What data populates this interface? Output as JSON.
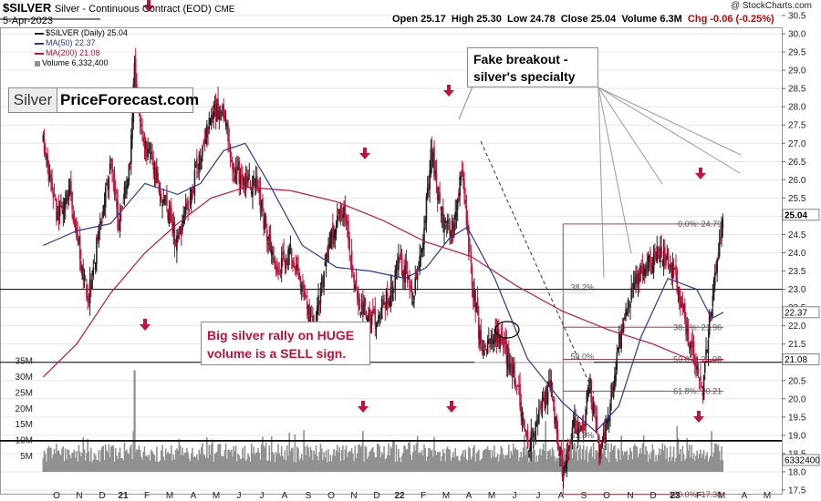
{
  "header": {
    "symbol": "$SILVER",
    "name": "Silver - Continuous Contract (EOD)",
    "exchange": "CME",
    "date": "5-Apr-2023",
    "open": "Open 25.17",
    "high": "High 25.30",
    "low": "Low 24.78",
    "close": "Close 25.04",
    "volume": "Volume 6.3M",
    "chg": "Chg -0.06 (-0.25%)",
    "credit": "@ StockCharts.com"
  },
  "legend": {
    "price": "$SILVER (Daily) 25.04",
    "ma50": "MA(50) 22.37",
    "ma200": "MA(200) 21.08",
    "volume": "Volume 6,332,400"
  },
  "brand": {
    "part1": "Silver",
    "part2": "PriceForecast.com"
  },
  "annotations": {
    "fake_breakout": [
      "Fake breakout -",
      "silver's specialty"
    ],
    "volume_note": [
      "Big silver rally on HUGE",
      "volume is a SELL sign."
    ]
  },
  "colors": {
    "candle_up": "#202020",
    "candle_down": "#c0143c",
    "ma50": "#2b3a8f",
    "ma200": "#c0143c",
    "fib": "#b04050",
    "volume": "#909090",
    "arrow": "#c0143c",
    "support": "#000000"
  },
  "chart_data": {
    "type": "candlestick",
    "title": "$SILVER Silver - Continuous Contract (EOD)",
    "y_price": {
      "min": 17.25,
      "max": 30.75,
      "ticks": [
        "30.5",
        "30.0",
        "29.5",
        "29.0",
        "28.5",
        "28.0",
        "27.5",
        "27.0",
        "26.5",
        "26.0",
        "25.5",
        "25.0",
        "24.5",
        "24.0",
        "23.5",
        "23.0",
        "22.5",
        "22.0",
        "21.5",
        "21.0",
        "20.5",
        "20.0",
        "19.5",
        "19.0",
        "18.5",
        "18.0",
        "17.5"
      ]
    },
    "y_volume": {
      "ticks": [
        "35M",
        "30M",
        "25M",
        "20M",
        "15M",
        "10M",
        "5M"
      ]
    },
    "x_labels": [
      "O",
      "N",
      "D",
      "21",
      "F",
      "M",
      "A",
      "M",
      "J",
      "J",
      "A",
      "S",
      "O",
      "N",
      "D",
      "22",
      "F",
      "M",
      "A",
      "M",
      "J",
      "J",
      "A",
      "S",
      "O",
      "N",
      "D",
      "23",
      "F",
      "M",
      "A",
      "M"
    ],
    "last_price": "25.04",
    "right_tags": [
      "25.04",
      "22.37",
      "21.08",
      "6332400"
    ],
    "price_path": [
      [
        "2020-10-01",
        27.0
      ],
      [
        "2020-10-20",
        25.0
      ],
      [
        "2020-11-05",
        25.8
      ],
      [
        "2020-11-30",
        22.6
      ],
      [
        "2020-12-15",
        24.6
      ],
      [
        "2020-12-31",
        26.4
      ],
      [
        "2021-01-10",
        24.8
      ],
      [
        "2021-01-25",
        26.2
      ],
      [
        "2021-02-01",
        29.0
      ],
      [
        "2021-02-10",
        27.3
      ],
      [
        "2021-03-01",
        26.2
      ],
      [
        "2021-03-31",
        24.2
      ],
      [
        "2021-04-20",
        25.8
      ],
      [
        "2021-05-15",
        27.8
      ],
      [
        "2021-05-31",
        28.0
      ],
      [
        "2021-06-15",
        26.2
      ],
      [
        "2021-06-30",
        26.0
      ],
      [
        "2021-07-15",
        25.8
      ],
      [
        "2021-08-10",
        23.5
      ],
      [
        "2021-08-31",
        24.0
      ],
      [
        "2021-09-30",
        21.8
      ],
      [
        "2021-10-20",
        24.2
      ],
      [
        "2021-11-10",
        25.2
      ],
      [
        "2021-11-25",
        23.0
      ],
      [
        "2021-12-15",
        22.0
      ],
      [
        "2022-01-10",
        22.8
      ],
      [
        "2022-01-25",
        23.8
      ],
      [
        "2022-02-10",
        22.8
      ],
      [
        "2022-02-25",
        24.5
      ],
      [
        "2022-03-08",
        26.8
      ],
      [
        "2022-03-20",
        25.0
      ],
      [
        "2022-04-05",
        24.6
      ],
      [
        "2022-04-18",
        26.2
      ],
      [
        "2022-04-30",
        23.5
      ],
      [
        "2022-05-15",
        21.2
      ],
      [
        "2022-05-31",
        21.8
      ],
      [
        "2022-06-15",
        21.3
      ],
      [
        "2022-06-30",
        20.5
      ],
      [
        "2022-07-15",
        18.6
      ],
      [
        "2022-07-31",
        19.5
      ],
      [
        "2022-08-15",
        20.4
      ],
      [
        "2022-09-01",
        17.8
      ],
      [
        "2022-09-15",
        19.4
      ],
      [
        "2022-09-30",
        19.0
      ],
      [
        "2022-10-05",
        20.7
      ],
      [
        "2022-10-20",
        18.4
      ],
      [
        "2022-11-01",
        19.6
      ],
      [
        "2022-11-15",
        21.5
      ],
      [
        "2022-11-30",
        22.8
      ],
      [
        "2022-12-15",
        23.5
      ],
      [
        "2023-01-05",
        24.0
      ],
      [
        "2023-01-20",
        23.7
      ],
      [
        "2023-01-31",
        23.3
      ],
      [
        "2023-02-15",
        21.8
      ],
      [
        "2023-02-28",
        21.0
      ],
      [
        "2023-03-08",
        20.0
      ],
      [
        "2023-03-15",
        21.8
      ],
      [
        "2023-03-25",
        23.4
      ],
      [
        "2023-04-05",
        25.04
      ]
    ],
    "ma50_path": [
      [
        "2020-10-01",
        24.2
      ],
      [
        "2020-11-15",
        24.6
      ],
      [
        "2020-12-31",
        24.8
      ],
      [
        "2021-02-15",
        25.9
      ],
      [
        "2021-03-31",
        25.6
      ],
      [
        "2021-05-01",
        25.9
      ],
      [
        "2021-06-01",
        26.8
      ],
      [
        "2021-06-30",
        27.0
      ],
      [
        "2021-08-01",
        25.9
      ],
      [
        "2021-09-15",
        24.2
      ],
      [
        "2021-10-31",
        23.6
      ],
      [
        "2021-12-15",
        23.5
      ],
      [
        "2022-01-31",
        23.3
      ],
      [
        "2022-03-01",
        23.6
      ],
      [
        "2022-04-01",
        24.4
      ],
      [
        "2022-04-25",
        24.7
      ],
      [
        "2022-06-01",
        23.3
      ],
      [
        "2022-07-15",
        21.1
      ],
      [
        "2022-08-31",
        19.9
      ],
      [
        "2022-10-15",
        19.1
      ],
      [
        "2022-11-15",
        19.8
      ],
      [
        "2022-12-15",
        21.7
      ],
      [
        "2023-01-20",
        23.3
      ],
      [
        "2023-02-28",
        23.0
      ],
      [
        "2023-03-20",
        22.2
      ],
      [
        "2023-04-05",
        22.37
      ]
    ],
    "ma200_path": [
      [
        "2020-10-01",
        20.6
      ],
      [
        "2020-11-15",
        21.5
      ],
      [
        "2020-12-31",
        22.9
      ],
      [
        "2021-02-15",
        24.0
      ],
      [
        "2021-03-31",
        24.8
      ],
      [
        "2021-05-15",
        25.5
      ],
      [
        "2021-07-01",
        25.8
      ],
      [
        "2021-08-31",
        25.7
      ],
      [
        "2021-10-31",
        25.4
      ],
      [
        "2021-12-31",
        24.9
      ],
      [
        "2022-02-28",
        24.3
      ],
      [
        "2022-04-30",
        23.9
      ],
      [
        "2022-06-30",
        23.1
      ],
      [
        "2022-08-31",
        22.4
      ],
      [
        "2022-10-31",
        21.9
      ],
      [
        "2022-12-31",
        21.5
      ],
      [
        "2023-02-28",
        21.0
      ],
      [
        "2023-04-05",
        21.08
      ]
    ],
    "fib_levels": [
      {
        "label": "0.0%: 24.79",
        "value": 24.79
      },
      {
        "label": "38.2%: 21.96",
        "value": 21.96
      },
      {
        "label": "50.0%: 21.08",
        "value": 21.08
      },
      {
        "label": "61.8%: 20.21",
        "value": 20.21
      },
      {
        "label": "100.0%: 17.38",
        "value": 17.38
      }
    ],
    "fib_left_labels": [
      "38.2%",
      "50.0%",
      "61.8%"
    ],
    "horizontal_lines": [
      30.4,
      23.0,
      21.0,
      18.85
    ],
    "volume_spike": 32
  }
}
